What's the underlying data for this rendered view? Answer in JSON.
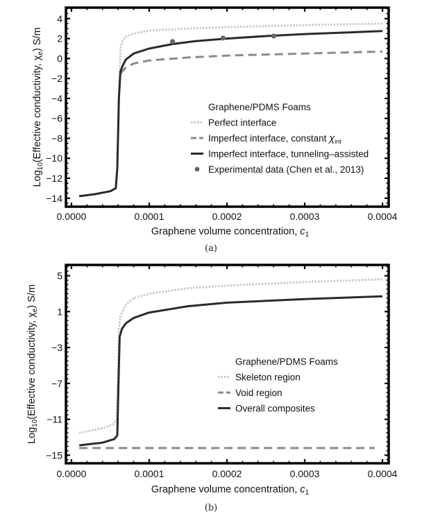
{
  "chart_data": [
    {
      "type": "line",
      "caption": "(a)",
      "xlabel": "Graphene volume concentration, ",
      "xlabel_var": "c",
      "xlabel_sub": "1",
      "ylabel": "Log",
      "ylabel_sub": "10",
      "ylabel_rest": "(Effective conductivity, χ",
      "ylabel_sub2": "e",
      "ylabel_end": ") S/m",
      "xlim": [
        -7.1e-06,
        0.000408
      ],
      "ylim": [
        -14.85,
        5.1
      ],
      "xticks": [
        0,
        0.0001,
        0.0002,
        0.0003,
        0.0004
      ],
      "xtick_labels": [
        "0.0000",
        "0.0001",
        "0.0002",
        "0.0003",
        "0.0004"
      ],
      "yticks": [
        4,
        2,
        0,
        -2,
        -4,
        -6,
        -8,
        -10,
        -12,
        -14
      ],
      "ytick_labels": [
        "4",
        "2",
        "0",
        "−2",
        "−4",
        "−6",
        "−8",
        "−10",
        "−12",
        "−14"
      ],
      "legend_title": "Graphene/PDMS Foams",
      "legend_position": "center-right",
      "series": [
        {
          "name": "Perfect interface",
          "style": "dotted",
          "color": "#c8c8c8",
          "x": [
            1e-05,
            3e-05,
            5e-05,
            5.7e-05,
            5.9e-05,
            6.1e-05,
            6.3e-05,
            6.6e-05,
            7e-05,
            8e-05,
            0.0001,
            0.00015,
            0.0002,
            0.0003,
            0.0004
          ],
          "y": [
            -13.8,
            -13.6,
            -13.3,
            -13.0,
            -11,
            -4,
            1.0,
            1.8,
            2.2,
            2.5,
            2.8,
            3.0,
            3.15,
            3.35,
            3.5
          ]
        },
        {
          "name": "Imperfect interface, constant ",
          "name_sym": "χ",
          "name_sub": "int",
          "style": "dashed",
          "color": "#8a8a8a",
          "x": [
            6.3e-05,
            7e-05,
            8e-05,
            0.0001,
            0.00015,
            0.0002,
            0.0003,
            0.0004
          ],
          "y": [
            -1.5,
            -0.9,
            -0.5,
            -0.2,
            0.1,
            0.3,
            0.5,
            0.7
          ]
        },
        {
          "name": "Imperfect interface, tunneling–assisted",
          "style": "solid",
          "color": "#2a2a2a",
          "x": [
            1e-05,
            3e-05,
            5e-05,
            5.7e-05,
            5.9e-05,
            6.1e-05,
            6.3e-05,
            6.6e-05,
            7e-05,
            8e-05,
            0.0001,
            0.00013,
            0.00016,
            0.0002,
            0.00025,
            0.0003,
            0.00035,
            0.0004
          ],
          "y": [
            -13.8,
            -13.6,
            -13.3,
            -13.0,
            -11,
            -4,
            -1.3,
            -0.7,
            -0.1,
            0.5,
            1.0,
            1.45,
            1.75,
            2.0,
            2.25,
            2.45,
            2.6,
            2.75
          ]
        },
        {
          "name": "Experimental data (Chen et al., 2013)",
          "style": "points",
          "color": "#666666",
          "x": [
            0.00013,
            0.000195,
            0.00026
          ],
          "y": [
            1.7,
            2.05,
            2.25
          ]
        }
      ]
    },
    {
      "type": "line",
      "caption": "(b)",
      "xlabel": "Graphene volume concentration, ",
      "xlabel_var": "c",
      "xlabel_sub": "1",
      "ylabel": "Log",
      "ylabel_sub": "10",
      "ylabel_rest": "(Effective conductivity, χ",
      "ylabel_sub2": "e",
      "ylabel_end": ") S/m",
      "xlim": [
        -7.1e-06,
        0.000408
      ],
      "ylim": [
        -15.9,
        6.2
      ],
      "xticks": [
        0,
        0.0001,
        0.0002,
        0.0003,
        0.0004
      ],
      "xtick_labels": [
        "0.0000",
        "0.0001",
        "0.0002",
        "0.0003",
        "0.0004"
      ],
      "yticks": [
        5,
        1,
        -3,
        -7,
        -11,
        -15
      ],
      "ytick_labels": [
        "5",
        "1",
        "−3",
        "−7",
        "−11",
        "−15"
      ],
      "legend_title": "Graphene/PDMS Foams",
      "legend_position": "center-right",
      "series": [
        {
          "name": "Skeleton region",
          "style": "dotted",
          "color": "#c8c8c8",
          "x": [
            1e-05,
            4e-05,
            5.5e-05,
            5.8e-05,
            6e-05,
            6.1e-05,
            6.3e-05,
            7e-05,
            8e-05,
            0.0001,
            0.00015,
            0.0002,
            0.0003,
            0.0004
          ],
          "y": [
            -12.5,
            -12,
            -11.5,
            -11,
            -5,
            -1,
            0.5,
            1.8,
            2.5,
            3.0,
            3.6,
            3.9,
            4.3,
            4.6
          ]
        },
        {
          "name": "Void region",
          "style": "dashed",
          "color": "#8a8a8a",
          "x": [
            1e-05,
            0.00039
          ],
          "y": [
            -14.2,
            -14.2
          ]
        },
        {
          "name": "Overall composites",
          "style": "solid",
          "color": "#2a2a2a",
          "x": [
            1e-05,
            4e-05,
            5.5e-05,
            5.9e-05,
            6.05e-05,
            6.2e-05,
            6.5e-05,
            7e-05,
            8e-05,
            0.0001,
            0.00015,
            0.0002,
            0.0003,
            0.0004
          ],
          "y": [
            -13.9,
            -13.6,
            -13.2,
            -12.8,
            -7,
            -1.8,
            -0.9,
            -0.3,
            0.3,
            0.9,
            1.6,
            2.0,
            2.4,
            2.7
          ]
        }
      ]
    }
  ]
}
